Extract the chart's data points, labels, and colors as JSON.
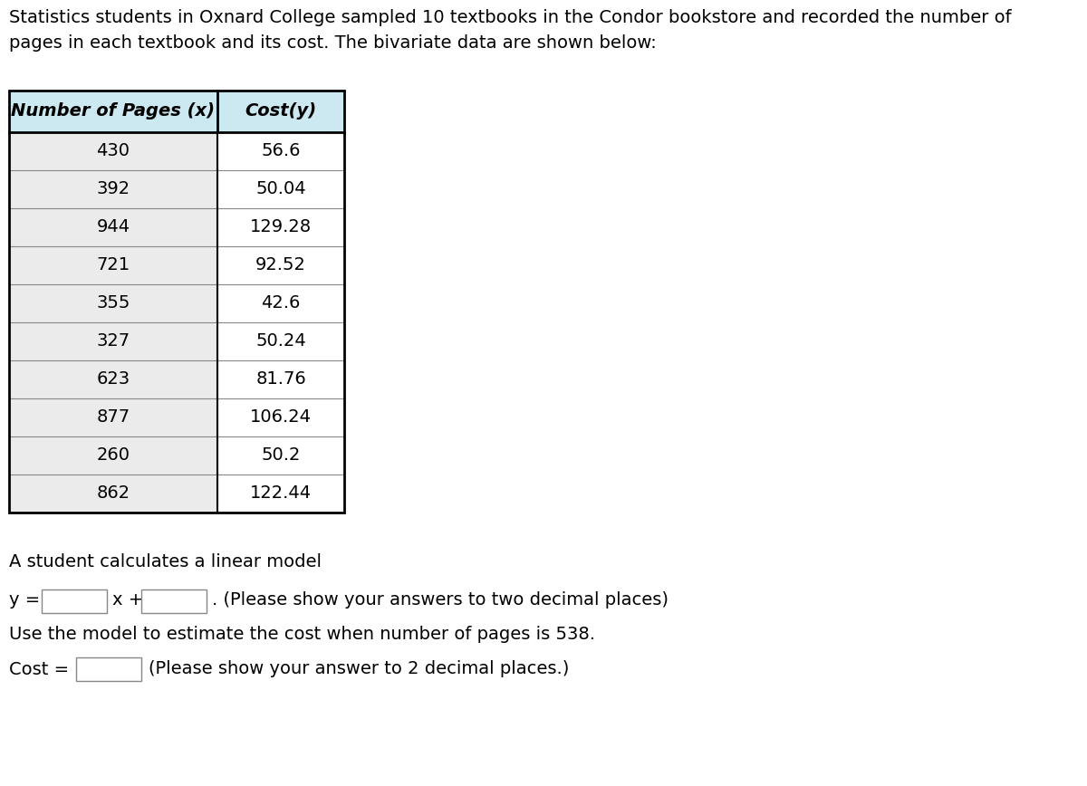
{
  "title_line1": "Statistics students in Oxnard College sampled 10 textbooks in the Condor bookstore and recorded the number of",
  "title_line2": "pages in each textbook and its cost. The bivariate data are shown below:",
  "col1_header_display": "Number of Pages (x)",
  "col2_header_display": "Cost(y)",
  "pages": [
    430,
    392,
    944,
    721,
    355,
    327,
    623,
    877,
    260,
    862
  ],
  "costs": [
    "56.6",
    "50.04",
    "129.28",
    "92.52",
    "42.6",
    "50.24",
    "81.76",
    "106.24",
    "50.2",
    "122.44"
  ],
  "linear_model_text": "A student calculates a linear model",
  "use_model_text": "Use the model to estimate the cost when number of pages is 538.",
  "please_two_decimal": ". (Please show your answers to two decimal places)",
  "please_two_decimal2": "(Please show your answer to 2 decimal places.)",
  "background_color": "#ffffff",
  "text_color": "#000000",
  "table_header_bg": "#cce8f0",
  "table_row_bg": "#ebebeb",
  "table_row_bg2": "#ffffff",
  "table_border_color": "#000000",
  "table_inner_color": "#888888",
  "font_size_title": 14,
  "font_size_table": 14,
  "font_size_body": 14,
  "input_box_color": "#ffffff",
  "input_box_border": "#888888"
}
